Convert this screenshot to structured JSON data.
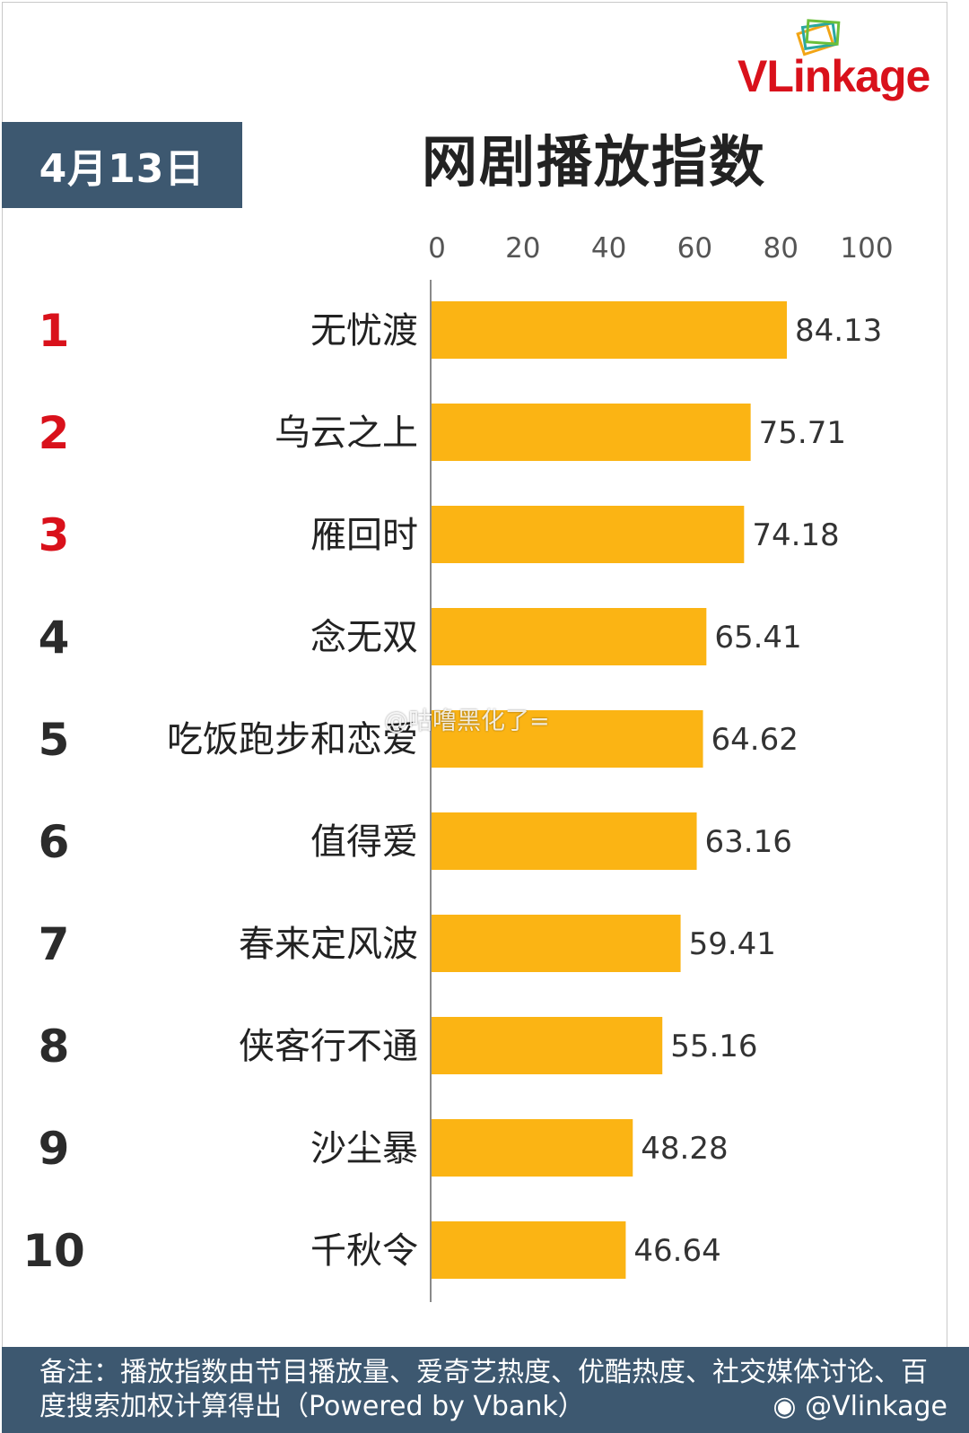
{
  "logo": {
    "text_v": "VL",
    "text_rest": "inkage"
  },
  "date": "4月13日",
  "title": "网剧播放指数",
  "chart_data": {
    "type": "bar",
    "orientation": "horizontal",
    "title": "网剧播放指数",
    "xlim": [
      0,
      100
    ],
    "x_ticks": [
      "0",
      "20",
      "40",
      "60",
      "80",
      "100"
    ],
    "ranks": [
      "1",
      "2",
      "3",
      "4",
      "5",
      "6",
      "7",
      "8",
      "9",
      "10"
    ],
    "categories": [
      "无忧渡",
      "乌云之上",
      "雁回时",
      "念无双",
      "吃饭跑步和恋爱",
      "值得爱",
      "春来定风波",
      "侠客行不通",
      "沙尘暴",
      "千秋令"
    ],
    "values": [
      84.13,
      75.71,
      74.18,
      65.41,
      64.62,
      63.16,
      59.41,
      55.16,
      48.28,
      46.64
    ],
    "value_labels": [
      "84.13",
      "75.71",
      "74.18",
      "65.41",
      "64.62",
      "63.16",
      "59.41",
      "55.16",
      "48.28",
      "46.64"
    ],
    "bar_color": "#fbb414",
    "top_rank_color": "#d9111b",
    "rank_color": "#2b2b2b"
  },
  "footer": {
    "note": "备注：播放指数由节目播放量、爱奇艺热度、优酷热度、社交媒体讨论、百度搜索加权计算得出（Powered by Vbank）",
    "credit": "@Vlinkage"
  },
  "watermark": "@咕噜黑化了="
}
